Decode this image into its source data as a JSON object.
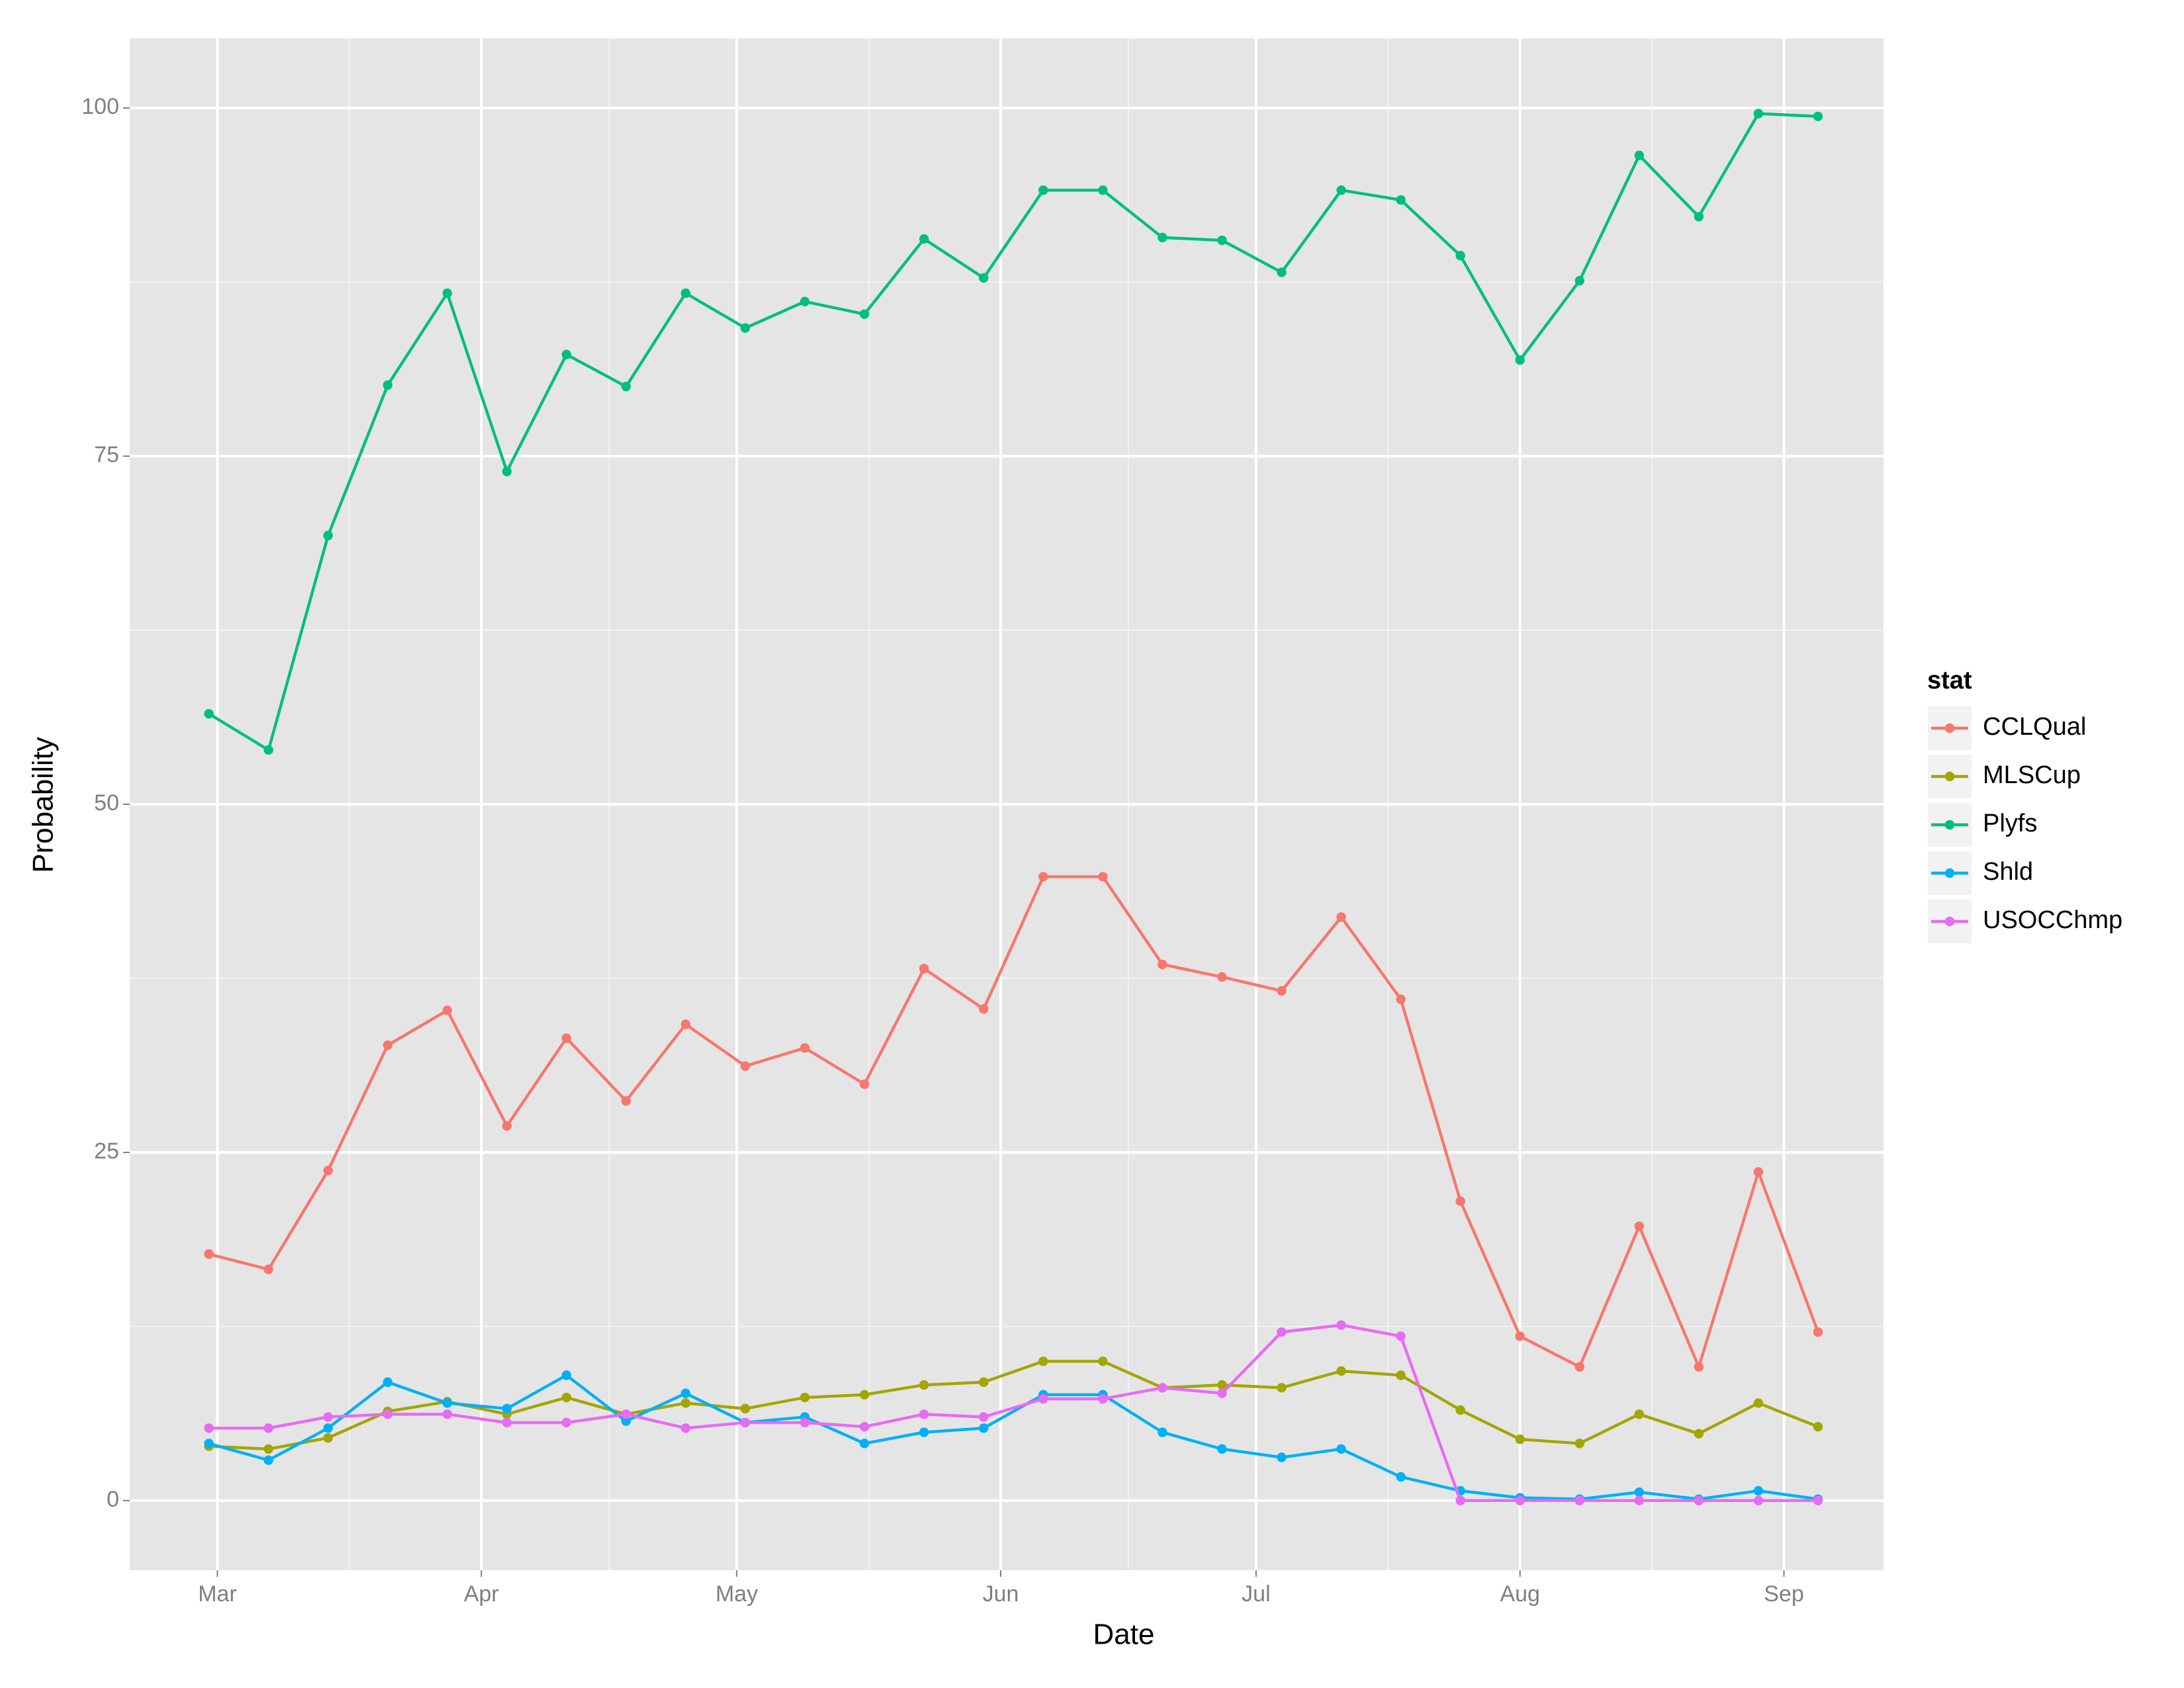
{
  "chart_data": {
    "type": "line",
    "x_label": "Date",
    "y_label": "Probability",
    "x": [
      -1,
      6,
      13,
      20,
      27,
      34,
      41,
      48,
      55,
      62,
      69,
      76,
      83,
      90,
      97,
      104,
      111,
      118,
      125,
      132,
      139,
      146,
      153,
      160,
      167,
      174,
      181,
      188
    ],
    "xlim": [
      -10.3,
      195.7
    ],
    "xticks": [
      {
        "value": 0,
        "label": "Mar"
      },
      {
        "value": 31,
        "label": "Apr"
      },
      {
        "value": 61,
        "label": "May"
      },
      {
        "value": 92,
        "label": "Jun"
      },
      {
        "value": 122,
        "label": "Jul"
      },
      {
        "value": 153,
        "label": "Aug"
      },
      {
        "value": 184,
        "label": "Sep"
      }
    ],
    "ylim": [
      -5,
      105
    ],
    "yticks": [
      0,
      25,
      50,
      75,
      100
    ],
    "grid": true,
    "legend": "right",
    "legend_title": "stat",
    "series": [
      {
        "name": "CCLQual",
        "color": "#F8766D",
        "values": [
          17.7,
          16.6,
          23.7,
          32.7,
          35.2,
          26.9,
          33.2,
          28.7,
          34.2,
          31.2,
          32.5,
          29.9,
          38.2,
          35.3,
          44.8,
          44.8,
          38.5,
          37.6,
          36.6,
          41.9,
          36.0,
          21.5,
          11.8,
          9.6,
          19.7,
          9.6,
          23.6,
          12.1
        ]
      },
      {
        "name": "MLSCup",
        "color": "#A3A500",
        "values": [
          3.9,
          3.7,
          4.5,
          6.4,
          7.1,
          6.2,
          7.4,
          6.2,
          7.0,
          6.6,
          7.4,
          7.6,
          8.3,
          8.5,
          10.0,
          10.0,
          8.1,
          8.3,
          8.1,
          9.3,
          9.0,
          6.5,
          4.4,
          4.1,
          6.2,
          4.8,
          7.0,
          5.3
        ]
      },
      {
        "name": "Plyfs",
        "color": "#00BF7D",
        "values": [
          56.5,
          53.9,
          69.3,
          80.1,
          86.7,
          73.9,
          82.3,
          80.0,
          86.7,
          84.2,
          86.1,
          85.2,
          90.6,
          87.8,
          94.1,
          94.1,
          90.7,
          90.5,
          88.2,
          94.1,
          93.4,
          89.4,
          81.9,
          87.6,
          96.6,
          92.2,
          99.6,
          99.4
        ]
      },
      {
        "name": "Shld",
        "color": "#00B0F6",
        "values": [
          4.1,
          2.9,
          5.2,
          8.5,
          7.0,
          6.6,
          9.0,
          5.7,
          7.7,
          5.6,
          6.0,
          4.1,
          4.9,
          5.2,
          7.6,
          7.6,
          4.9,
          3.7,
          3.1,
          3.7,
          1.7,
          0.7,
          0.2,
          0.1,
          0.6,
          0.1,
          0.7,
          0.1
        ]
      },
      {
        "name": "USOCChmp",
        "color": "#E76BF3",
        "values": [
          5.2,
          5.2,
          6.0,
          6.2,
          6.2,
          5.6,
          5.6,
          6.2,
          5.2,
          5.6,
          5.6,
          5.3,
          6.2,
          6.0,
          7.3,
          7.3,
          8.1,
          7.7,
          12.1,
          12.6,
          11.8,
          0,
          0,
          0,
          0,
          0,
          0,
          0
        ]
      }
    ]
  }
}
